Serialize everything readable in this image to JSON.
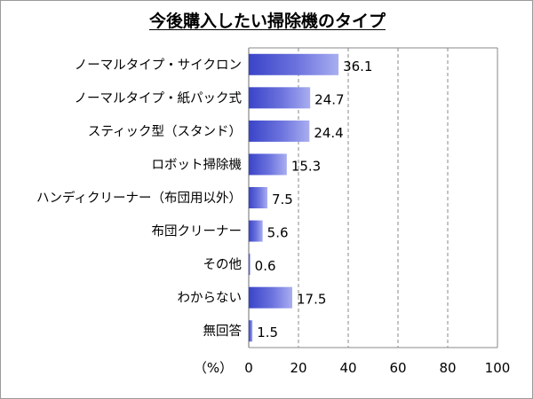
{
  "chart_data": {
    "type": "bar",
    "orientation": "horizontal",
    "title": "今後購入したい掃除機のタイプ",
    "categories": [
      "ノーマルタイプ・サイクロン",
      "ノーマルタイプ・紙パック式",
      "スティック型（スタンド）",
      "ロボット掃除機",
      "ハンディクリーナー（布団用以外）",
      "布団クリーナー",
      "その他",
      "わからない",
      "無回答"
    ],
    "values": [
      36.1,
      24.7,
      24.4,
      15.3,
      7.5,
      5.6,
      0.6,
      17.5,
      1.5
    ],
    "value_labels": [
      "36.1",
      "24.7",
      "24.4",
      "15.3",
      "7.5",
      "5.6",
      "0.6",
      "17.5",
      "1.5"
    ],
    "xlim": [
      0,
      100
    ],
    "xticks": [
      "0",
      "20",
      "40",
      "60",
      "80",
      "100"
    ],
    "xlabel": "（%）",
    "grid": "vertical dashed",
    "bar_color": "#5b63d6"
  }
}
